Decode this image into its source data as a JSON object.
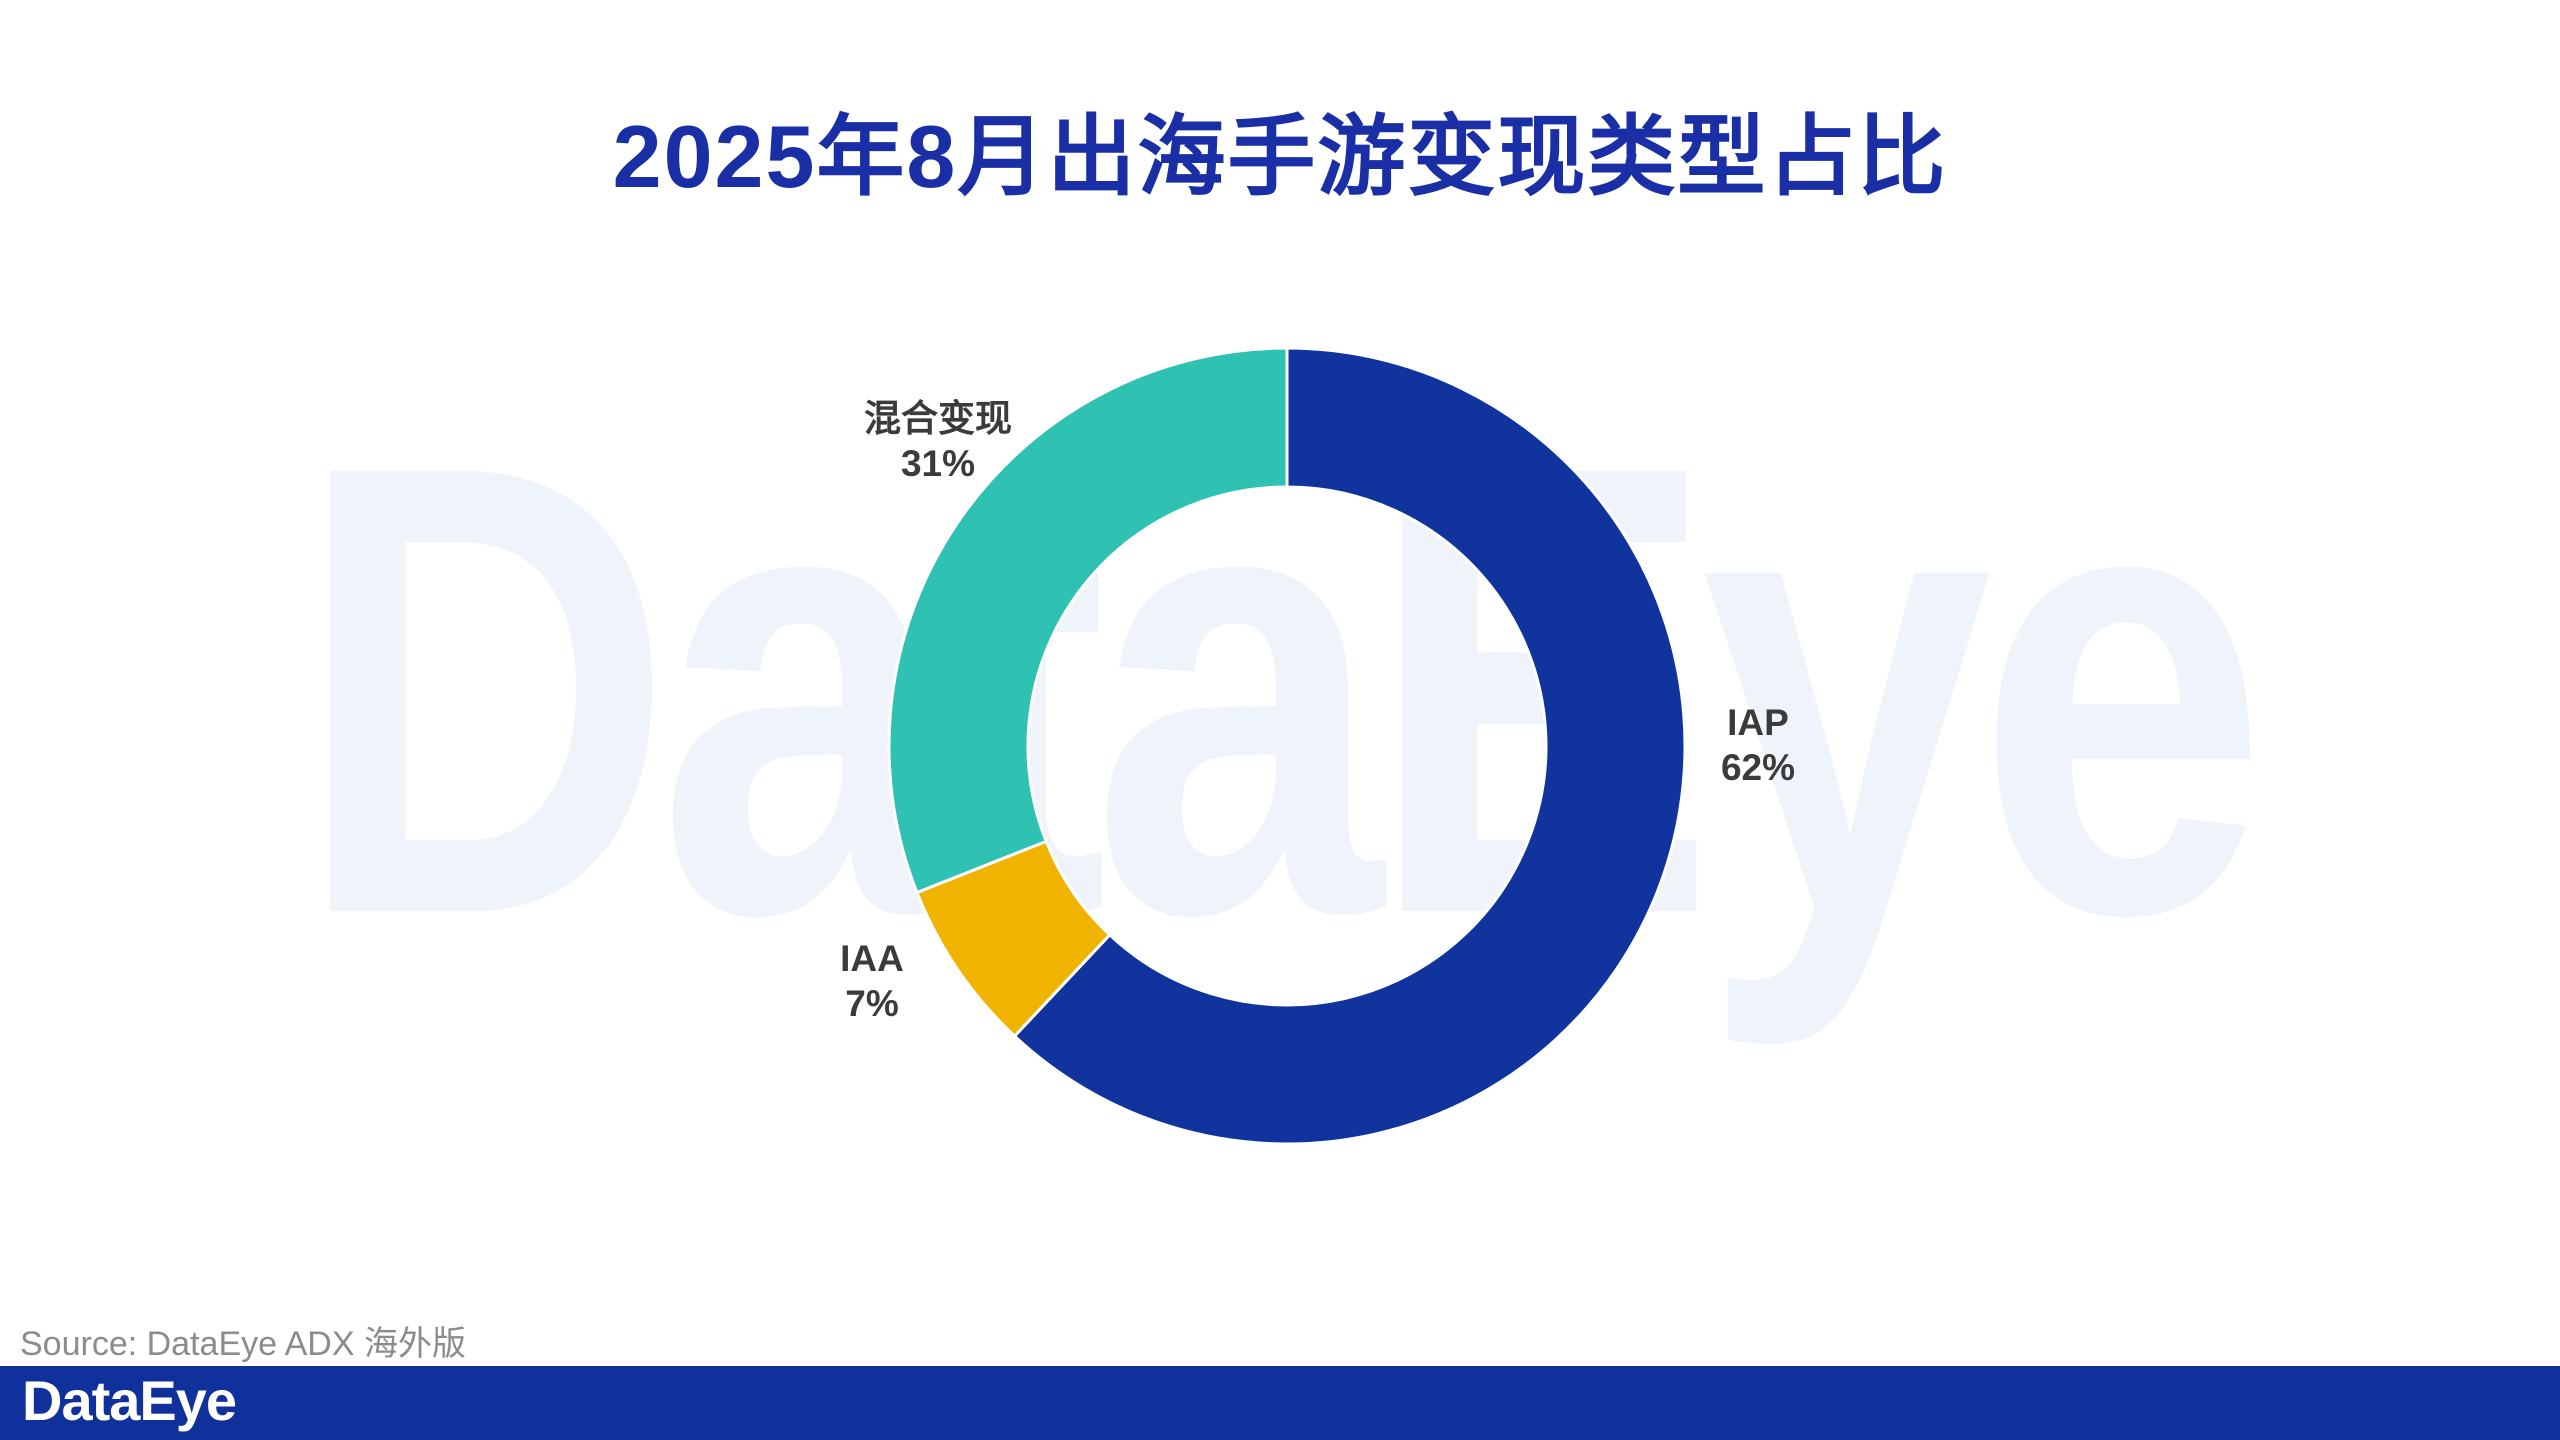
{
  "title": "2025年8月出海手游变现类型占比",
  "watermark_text": "DataEye",
  "source_note": "Source: DataEye ADX 海外版",
  "footer": {
    "logo_text": "DataEye"
  },
  "colors": {
    "title_blue": "#1A2FA6",
    "footer_blue": "#10309C",
    "watermark_blue": "#EFF4FA",
    "label_gray": "#3B3B3B",
    "source_gray": "#8C8C8C",
    "iap_blue": "#10339E",
    "iaa_gold": "#F0B400",
    "hybrid_teal": "#2FC1B2"
  },
  "chart_data": {
    "type": "pie",
    "subtype": "donut",
    "title": "2025年8月出海手游变现类型占比",
    "start_angle_deg": -90,
    "direction": "clockwise",
    "inner_radius_ratio": 0.65,
    "legend_position": "none",
    "segments": [
      {
        "label": "IAP",
        "value": 62,
        "percent_label": "62%",
        "color": "#10339E"
      },
      {
        "label": "IAA",
        "value": 7,
        "percent_label": "7%",
        "color": "#F0B400"
      },
      {
        "label": "混合变现",
        "value": 31,
        "percent_label": "31%",
        "color": "#2FC1B2"
      }
    ]
  }
}
